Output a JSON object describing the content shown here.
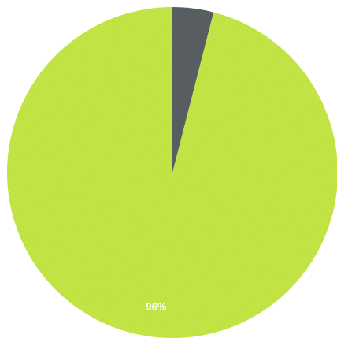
{
  "chart_data": {
    "type": "pie",
    "slices": [
      {
        "value": 96,
        "color": "#c5e845",
        "label": "96%"
      },
      {
        "value": 4,
        "color": "#5a5f63",
        "label": ""
      }
    ],
    "start": "top",
    "direction": "counterclockwise",
    "legend": "none"
  }
}
